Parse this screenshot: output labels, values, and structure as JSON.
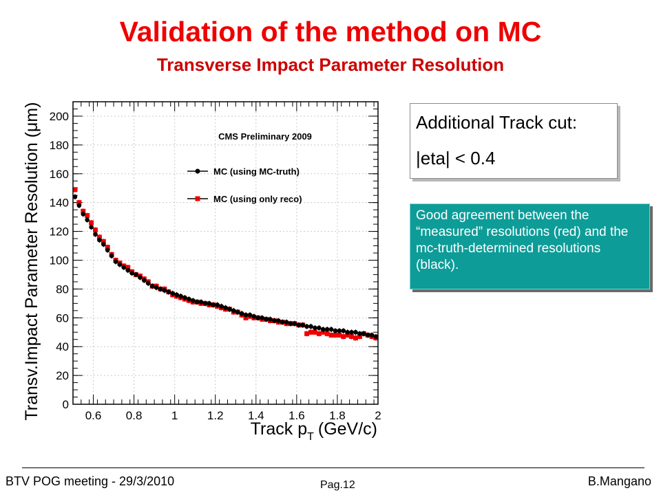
{
  "slide": {
    "title": "Validation of the method on MC",
    "subtitle": "Transverse Impact Parameter Resolution"
  },
  "cut_box": {
    "line1": "Additional Track cut:",
    "line2": "|eta| < 0.4"
  },
  "note_box": {
    "text": "Good agreement between the “measured” resolutions (red) and the mc-truth-determined resolutions (black)."
  },
  "footer": {
    "left": "BTV POG meeting - 29/3/2010",
    "center": "Pag.12",
    "right": "B.Mangano"
  },
  "colors": {
    "title": "#ee0000",
    "series_truth": "#000000",
    "series_reco": "#ee0000",
    "note_bg": "#0e9c98"
  },
  "chart_data": {
    "type": "scatter",
    "title": "CMS Preliminary 2009",
    "xlabel": "Track p",
    "xlabel_sub": "T",
    "xlabel_unit": "(GeV/c)",
    "ylabel": "Transv.Impact Parameter Resolution (μm)",
    "xlim": [
      0.5,
      2.0
    ],
    "ylim": [
      0,
      210
    ],
    "xticks": [
      0.6,
      0.8,
      1,
      1.2,
      1.4,
      1.6,
      1.8,
      2
    ],
    "xtick_labels": [
      "0.6",
      "0.8",
      "1",
      "1.2",
      "1.4",
      "1.6",
      "1.8",
      "2"
    ],
    "yticks": [
      0,
      20,
      40,
      60,
      80,
      100,
      120,
      140,
      160,
      180,
      200
    ],
    "ytick_labels": [
      "0",
      "20",
      "40",
      "60",
      "80",
      "100",
      "120",
      "140",
      "160",
      "180",
      "200"
    ],
    "grid": true,
    "legend": "top-right",
    "x": [
      0.51,
      0.53,
      0.55,
      0.57,
      0.59,
      0.61,
      0.63,
      0.65,
      0.67,
      0.69,
      0.71,
      0.73,
      0.75,
      0.77,
      0.79,
      0.81,
      0.83,
      0.85,
      0.87,
      0.89,
      0.91,
      0.93,
      0.95,
      0.97,
      0.99,
      1.01,
      1.03,
      1.05,
      1.07,
      1.09,
      1.11,
      1.13,
      1.15,
      1.17,
      1.19,
      1.21,
      1.23,
      1.25,
      1.27,
      1.29,
      1.31,
      1.33,
      1.35,
      1.37,
      1.39,
      1.41,
      1.43,
      1.45,
      1.47,
      1.49,
      1.51,
      1.53,
      1.55,
      1.57,
      1.59,
      1.61,
      1.63,
      1.65,
      1.67,
      1.69,
      1.71,
      1.73,
      1.75,
      1.77,
      1.79,
      1.81,
      1.83,
      1.85,
      1.87,
      1.89,
      1.91,
      1.93,
      1.95,
      1.97,
      1.99
    ],
    "series": [
      {
        "name": "MC (using MC-truth)",
        "marker": "circle",
        "values": [
          144,
          138,
          132,
          128,
          123,
          118,
          114,
          111,
          107,
          103,
          99,
          97,
          95,
          93,
          91,
          90,
          88,
          86,
          84,
          82,
          81,
          80,
          79,
          78,
          77,
          76,
          75,
          74,
          73,
          72,
          71,
          71,
          70,
          70,
          69,
          69,
          68,
          67,
          66,
          65,
          64,
          63,
          62,
          62,
          61,
          60,
          60,
          59,
          59,
          58,
          58,
          57,
          57,
          56,
          56,
          55,
          55,
          54,
          54,
          53,
          53,
          52,
          52,
          52,
          51,
          51,
          51,
          50,
          50,
          50,
          49,
          49,
          48,
          48,
          47
        ]
      },
      {
        "name": "MC (using only reco)",
        "marker": "square",
        "values": [
          149,
          140,
          134,
          131,
          126,
          121,
          116,
          113,
          109,
          104,
          100,
          98,
          96,
          95,
          92,
          90,
          89,
          87,
          85,
          82,
          82,
          80,
          80,
          78,
          76,
          75,
          74,
          73,
          72,
          71,
          71,
          70,
          70,
          69,
          69,
          68,
          67,
          66,
          66,
          64,
          64,
          62,
          60,
          61,
          60,
          60,
          59,
          59,
          58,
          58,
          57,
          57,
          56,
          56,
          56,
          55,
          55,
          49,
          50,
          50,
          49,
          50,
          49,
          48,
          48,
          48,
          47,
          48,
          47,
          46,
          47,
          49,
          48,
          47,
          46
        ]
      }
    ]
  }
}
